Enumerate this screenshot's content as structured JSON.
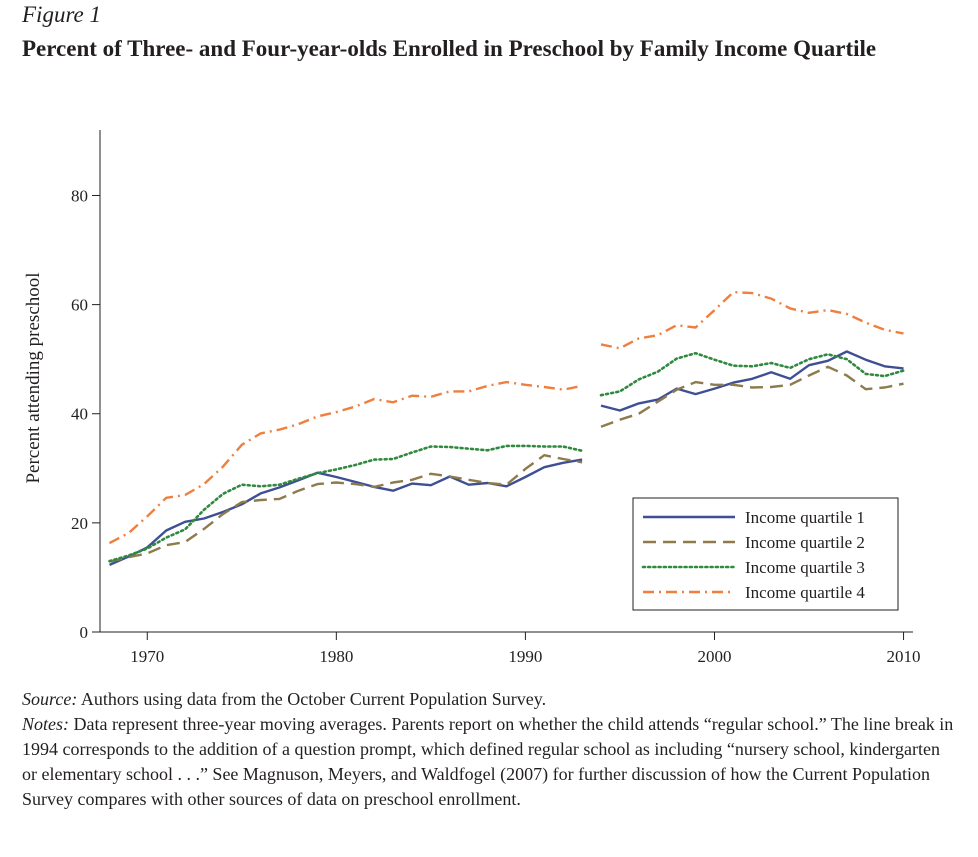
{
  "figure": {
    "label": "Figure 1",
    "title": "Percent of Three- and Four-year-olds Enrolled in Preschool by Family Income Quartile"
  },
  "source": {
    "label": "Source:",
    "text": " Authors using data from the October Current Population Survey."
  },
  "notes": {
    "label": "Notes:",
    "text": " Data represent three-year moving averages. Parents report on whether the child attends “regular school.” The line break in 1994 corresponds to the addition of a question prompt, which defined regular school as including “nursery school, kindergarten or elementary school . . .” See Magnuson, Meyers, and Waldfogel (2007) for further discussion of how the Current Population Survey compares with other sources of data on preschool enrollment."
  },
  "chart_data": {
    "type": "line",
    "ylabel": "Percent attending preschool",
    "xlim": [
      1967.5,
      2010.5
    ],
    "ylim": [
      0,
      92
    ],
    "xticks": [
      1970,
      1980,
      1990,
      2000,
      2010
    ],
    "yticks": [
      0,
      20,
      40,
      60,
      80
    ],
    "break_after": 1993,
    "legend_position": "bottom-right",
    "x": [
      1968,
      1969,
      1970,
      1971,
      1972,
      1973,
      1974,
      1975,
      1976,
      1977,
      1978,
      1979,
      1980,
      1981,
      1982,
      1983,
      1984,
      1985,
      1986,
      1987,
      1988,
      1989,
      1990,
      1991,
      1992,
      1993,
      1994,
      1995,
      1996,
      1997,
      1998,
      1999,
      2000,
      2001,
      2002,
      2003,
      2004,
      2005,
      2006,
      2007,
      2008,
      2009,
      2010
    ],
    "series": [
      {
        "name": "Income quartile 1",
        "color": "#3f4f93",
        "dash": "solid",
        "values": [
          12.3,
          13.8,
          15.5,
          18.6,
          20.2,
          20.8,
          22.0,
          23.4,
          25.4,
          26.5,
          27.8,
          29.2,
          28.4,
          27.5,
          26.6,
          25.9,
          27.2,
          26.9,
          28.5,
          27.0,
          27.3,
          26.7,
          28.4,
          30.2,
          31.0,
          31.6,
          41.5,
          40.6,
          41.9,
          42.6,
          44.6,
          43.6,
          44.6,
          45.7,
          46.4,
          47.6,
          46.4,
          48.9,
          49.7,
          51.4,
          49.9,
          48.7,
          48.3
        ]
      },
      {
        "name": "Income quartile 2",
        "color": "#8d7b4c",
        "dash": "dashed",
        "values": [
          12.9,
          13.7,
          14.4,
          15.9,
          16.5,
          18.9,
          21.6,
          23.8,
          24.2,
          24.4,
          25.9,
          27.1,
          27.4,
          27.1,
          26.6,
          27.4,
          27.9,
          29.0,
          28.5,
          27.9,
          27.3,
          27.0,
          29.9,
          32.4,
          31.7,
          31.1,
          37.6,
          38.9,
          40.0,
          42.2,
          44.4,
          45.8,
          45.3,
          45.3,
          44.8,
          44.9,
          45.3,
          47.0,
          48.6,
          47.0,
          44.5,
          44.8,
          45.5
        ]
      },
      {
        "name": "Income quartile 3",
        "color": "#2f8a3f",
        "dash": "dotted",
        "values": [
          13.0,
          14.0,
          15.3,
          17.3,
          18.8,
          22.4,
          25.3,
          27.0,
          26.7,
          27.0,
          28.1,
          29.1,
          29.8,
          30.6,
          31.6,
          31.7,
          32.9,
          34.0,
          33.9,
          33.6,
          33.3,
          34.1,
          34.1,
          34.0,
          34.0,
          33.2,
          43.4,
          44.1,
          46.3,
          47.7,
          50.1,
          51.1,
          49.9,
          48.8,
          48.7,
          49.3,
          48.4,
          50.0,
          50.9,
          50.0,
          47.3,
          46.9,
          47.9
        ]
      },
      {
        "name": "Income quartile 4",
        "color": "#ee7f3f",
        "dash": "dashdot",
        "values": [
          16.3,
          18.1,
          21.2,
          24.6,
          25.1,
          27.1,
          30.3,
          34.3,
          36.4,
          37.1,
          38.1,
          39.5,
          40.3,
          41.3,
          42.7,
          42.1,
          43.3,
          43.1,
          44.1,
          44.1,
          45.1,
          45.8,
          45.3,
          44.9,
          44.4,
          45.1,
          52.7,
          52.0,
          53.8,
          54.4,
          56.2,
          55.8,
          59.0,
          62.3,
          62.1,
          61.1,
          59.3,
          58.5,
          59.0,
          58.3,
          56.7,
          55.4,
          54.7
        ]
      }
    ]
  }
}
